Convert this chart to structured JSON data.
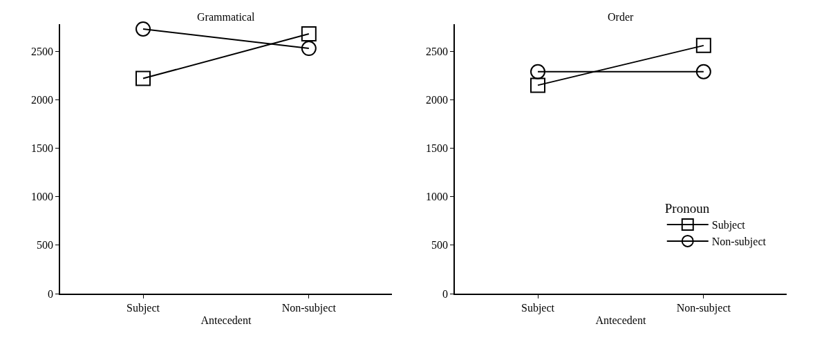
{
  "chart_data": [
    {
      "type": "line",
      "title": "Grammatical",
      "xlabel": "Antecedent",
      "categories": [
        "Subject",
        "Non-subject"
      ],
      "ylim": [
        0,
        2780
      ],
      "yticks": [
        0,
        500,
        1000,
        1500,
        2000,
        2500
      ],
      "legend": false,
      "series": [
        {
          "color": "#000000",
          "marker": "square",
          "values": [
            2220,
            2680
          ]
        },
        {
          "color": "#000000",
          "marker": "circle",
          "values": [
            2730,
            2530
          ]
        }
      ]
    },
    {
      "type": "line",
      "title": "Order",
      "xlabel": "Antecedent",
      "categories": [
        "Subject",
        "Non-subject"
      ],
      "ylim": [
        0,
        2780
      ],
      "yticks": [
        0,
        500,
        1000,
        1500,
        2000,
        2500
      ],
      "legend": "bottom right",
      "legend_title": "Pronoun",
      "series": [
        {
          "name": "Subject",
          "color": "#000000",
          "marker": "square",
          "values": [
            2150,
            2560
          ]
        },
        {
          "name": "Non-subject",
          "color": "#000000",
          "marker": "circle",
          "values": [
            2290,
            2290
          ]
        }
      ]
    }
  ]
}
